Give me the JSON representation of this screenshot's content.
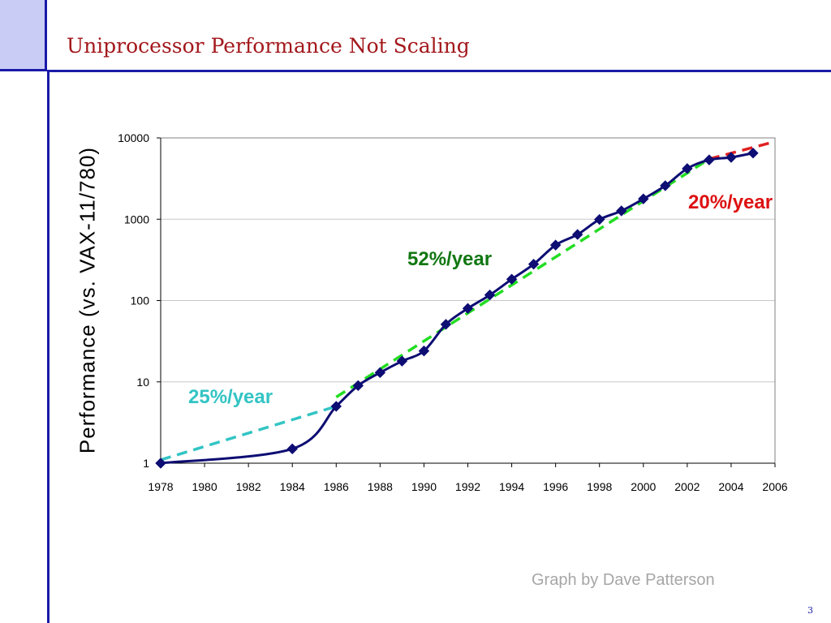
{
  "slide": {
    "title": "Uniprocessor Performance Not Scaling",
    "credit": "Graph by Dave Patterson",
    "page_number": "3"
  },
  "chart_data": {
    "type": "line",
    "title": "",
    "xlabel": "",
    "ylabel": "Performance (vs. VAX-11/780)",
    "yscale": "log",
    "xlim": [
      1978,
      2006
    ],
    "ylim": [
      1,
      10000
    ],
    "grid": "horizontal",
    "x_ticks": [
      "1978",
      "1980",
      "1982",
      "1984",
      "1986",
      "1988",
      "1990",
      "1992",
      "1994",
      "1996",
      "1998",
      "2000",
      "2002",
      "2004",
      "2006"
    ],
    "y_ticks": [
      "1",
      "10",
      "100",
      "1000",
      "10000"
    ],
    "series": [
      {
        "color": "#0d0d73",
        "points": [
          [
            1978,
            1
          ],
          [
            1984,
            1.5
          ],
          [
            1986,
            5
          ],
          [
            1987,
            9
          ],
          [
            1988,
            13
          ],
          [
            1989,
            18
          ],
          [
            1990,
            24
          ],
          [
            1991,
            51
          ],
          [
            1992,
            80
          ],
          [
            1993,
            117
          ],
          [
            1994,
            183
          ],
          [
            1995,
            280
          ],
          [
            1996,
            481
          ],
          [
            1997,
            649
          ],
          [
            1998,
            993
          ],
          [
            1999,
            1267
          ],
          [
            2000,
            1779
          ],
          [
            2001,
            2584
          ],
          [
            2002,
            4195
          ],
          [
            2003,
            5364
          ],
          [
            2004,
            5764
          ],
          [
            2005,
            6505
          ]
        ],
        "markers": [
          [
            1978,
            1
          ],
          [
            1984,
            1.5
          ],
          [
            1986,
            5
          ],
          [
            1987,
            9
          ],
          [
            1988,
            13
          ],
          [
            1989,
            18
          ],
          [
            1990,
            24
          ],
          [
            1991,
            51
          ],
          [
            1992,
            80
          ],
          [
            1993,
            117
          ],
          [
            1994,
            183
          ],
          [
            1995,
            280
          ],
          [
            1996,
            481
          ],
          [
            1997,
            649
          ],
          [
            1998,
            993
          ],
          [
            1999,
            1267
          ],
          [
            2000,
            1779
          ],
          [
            2001,
            2584
          ],
          [
            2002,
            4195
          ],
          [
            2003,
            5364
          ],
          [
            2004,
            5764
          ],
          [
            2005,
            6505
          ]
        ]
      }
    ],
    "trends": [
      {
        "label": "25%/year",
        "color": "#33c4c4",
        "points": [
          [
            1978,
            1.1
          ],
          [
            1986,
            5
          ]
        ]
      },
      {
        "label": "52%/year",
        "color": "#22dd22",
        "points": [
          [
            1986,
            6.5
          ],
          [
            2003,
            5500
          ]
        ]
      },
      {
        "label": "20%/year",
        "color": "#e02020",
        "points": [
          [
            2003,
            5500
          ],
          [
            2006,
            9000
          ]
        ]
      }
    ],
    "annotations": [
      {
        "text": "25%/year",
        "color": "#33c4c4"
      },
      {
        "text": "52%/year",
        "color": "#117711"
      },
      {
        "text": "20%/year",
        "color": "#dd1111"
      }
    ]
  }
}
